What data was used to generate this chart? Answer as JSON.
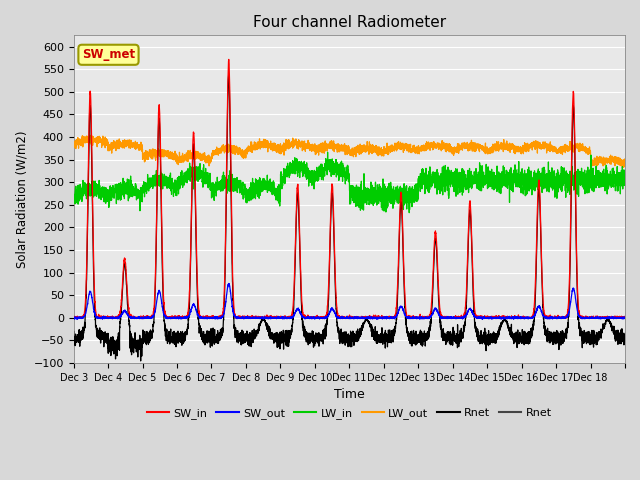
{
  "title": "Four channel Radiometer",
  "xlabel": "Time",
  "ylabel": "Solar Radiation (W/m2)",
  "ylim": [
    -100,
    625
  ],
  "yticks": [
    -100,
    -50,
    0,
    50,
    100,
    150,
    200,
    250,
    300,
    350,
    400,
    450,
    500,
    550,
    600
  ],
  "bg_color": "#d8d8d8",
  "plot_bg_color": "#e8e8e8",
  "legend_labels": [
    "SW_in",
    "SW_out",
    "LW_in",
    "LW_out",
    "Rnet",
    "Rnet"
  ],
  "legend_colors": [
    "#ff0000",
    "#0000ff",
    "#00cc00",
    "#ff9900",
    "#000000",
    "#444444"
  ],
  "legend_linestyles": [
    "-",
    "-",
    "-",
    "-",
    "-",
    "-"
  ],
  "annotation_text": "SW_met",
  "annotation_color": "#cc0000",
  "annotation_bg": "#ffff99",
  "annotation_border": "#999900",
  "n_days": 16,
  "x_tick_labels": [
    "Dec 3",
    "Dec 4",
    "Dec 5",
    "Dec 6",
    "Dec 7",
    "Dec 8",
    "Dec 9",
    "Dec 10",
    "Dec 11",
    "Dec 12",
    "Dec 13",
    "Dec 14",
    "Dec 15",
    "Dec 16",
    "Dec 17",
    "Dec 18"
  ],
  "grid_color": "#ffffff",
  "grid_alpha": 1.0
}
